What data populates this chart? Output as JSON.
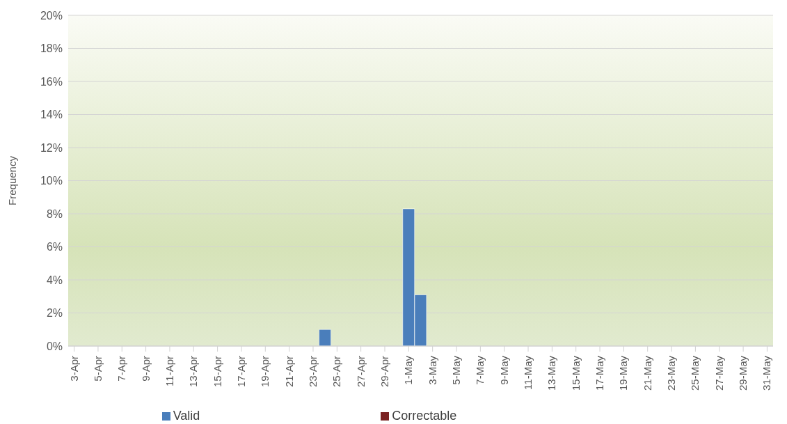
{
  "chart_data": {
    "type": "bar",
    "ylabel": "Frequency",
    "categories": [
      "3-Apr",
      null,
      "5-Apr",
      null,
      "7-Apr",
      null,
      "9-Apr",
      null,
      "11-Apr",
      null,
      "13-Apr",
      null,
      "15-Apr",
      null,
      "17-Apr",
      null,
      "19-Apr",
      null,
      "21-Apr",
      null,
      "23-Apr",
      null,
      "25-Apr",
      null,
      "27-Apr",
      null,
      "29-Apr",
      null,
      "1-May",
      null,
      "3-May",
      null,
      "5-May",
      null,
      "7-May",
      null,
      "9-May",
      null,
      "11-May",
      null,
      "13-May",
      null,
      "15-May",
      null,
      "17-May",
      null,
      "19-May",
      null,
      "21-May",
      null,
      "23-May",
      null,
      "25-May",
      null,
      "27-May",
      null,
      "29-May",
      null,
      "31-May"
    ],
    "series": [
      {
        "name": "Valid",
        "color": "#4a7ebb",
        "values": [
          0,
          0,
          0,
          0,
          0,
          0,
          0,
          0,
          0,
          0,
          0,
          0,
          0,
          0,
          0,
          0,
          0,
          0,
          0,
          0,
          0,
          1.0,
          0,
          0,
          0,
          0,
          0,
          0,
          8.3,
          3.1,
          0,
          0,
          0,
          0,
          0,
          0,
          0,
          0,
          0,
          0,
          0,
          0,
          0,
          0,
          0,
          0,
          0,
          0,
          0,
          0,
          0,
          0,
          0,
          0,
          0,
          0,
          0,
          0,
          0
        ]
      },
      {
        "name": "Correctable",
        "color": "#7b2222",
        "values": [
          0,
          0,
          0,
          0,
          0,
          0,
          0,
          0,
          0,
          0,
          0,
          0,
          0,
          0,
          0,
          0,
          0,
          0,
          0,
          0,
          0,
          0,
          0,
          0,
          0,
          0,
          0,
          0,
          0,
          0,
          0,
          0,
          0,
          0,
          0,
          0,
          0,
          0,
          0,
          0,
          0,
          0,
          0,
          0,
          0,
          0,
          0,
          0,
          0,
          0,
          0,
          0,
          0,
          0,
          0,
          0,
          0,
          0,
          0
        ]
      }
    ],
    "stacked": true,
    "ylim": [
      0,
      20
    ],
    "yticks": [
      {
        "value": 0,
        "label": "0%"
      },
      {
        "value": 2,
        "label": "2%"
      },
      {
        "value": 4,
        "label": "4%"
      },
      {
        "value": 6,
        "label": "6%"
      },
      {
        "value": 8,
        "label": "8%"
      },
      {
        "value": 10,
        "label": "10%"
      },
      {
        "value": 12,
        "label": "12%"
      },
      {
        "value": 14,
        "label": "14%"
      },
      {
        "value": 16,
        "label": "16%"
      },
      {
        "value": 18,
        "label": "18%"
      },
      {
        "value": 20,
        "label": "20%"
      }
    ],
    "grid": "y",
    "legend": "bottom"
  }
}
